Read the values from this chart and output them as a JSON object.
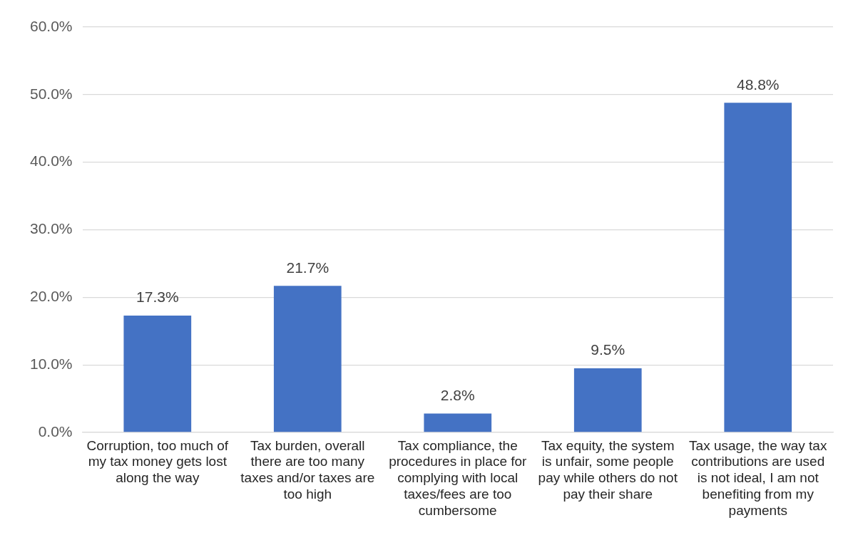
{
  "chart_data": {
    "type": "bar",
    "categories": [
      "Corruption, too much of my tax money gets lost along the way",
      "Tax burden, overall there are too many taxes and/or taxes are too high",
      "Tax compliance, the procedures in place for complying with local taxes/fees are too cumbersome",
      "Tax equity, the system is unfair, some people pay while others do not pay their share",
      "Tax usage, the way tax contributions are used is not ideal, I am not benefiting from my payments"
    ],
    "values": [
      17.3,
      21.7,
      2.8,
      9.5,
      48.8
    ],
    "value_labels": [
      "17.3%",
      "21.7%",
      "2.8%",
      "9.5%",
      "48.8%"
    ],
    "color": "#4472c4",
    "ylim": [
      0,
      60
    ],
    "yticks": [
      {
        "value": 0,
        "label": "0.0%"
      },
      {
        "value": 10,
        "label": "10.0%"
      },
      {
        "value": 20,
        "label": "20.0%"
      },
      {
        "value": 30,
        "label": "30.0%"
      },
      {
        "value": 40,
        "label": "40.0%"
      },
      {
        "value": 50,
        "label": "50.0%"
      },
      {
        "value": 60,
        "label": "60.0%"
      }
    ],
    "grid": "y",
    "legend": false
  }
}
